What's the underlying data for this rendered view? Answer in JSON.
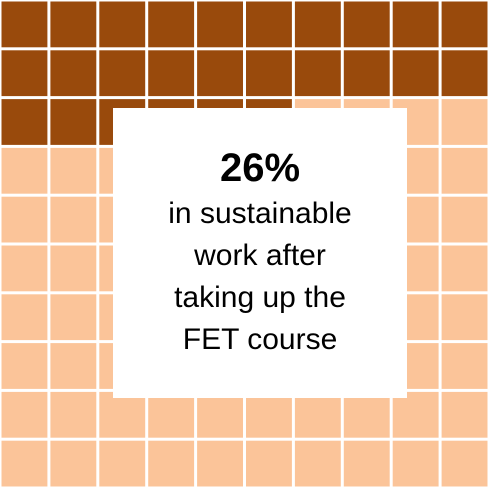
{
  "chart_data": {
    "type": "waffle",
    "grid_rows": 10,
    "grid_cols": 10,
    "total_cells": 100,
    "highlighted_cells": 26,
    "percentage": 26,
    "colors": {
      "highlighted": "#994a0c",
      "base": "#fbc499",
      "gridline": "#ffffff",
      "panel": "#ffffff",
      "text": "#000000"
    }
  },
  "stat": {
    "value": "26%",
    "caption_lines": [
      "in sustainable",
      "work after",
      "taking up the",
      "FET course"
    ]
  }
}
